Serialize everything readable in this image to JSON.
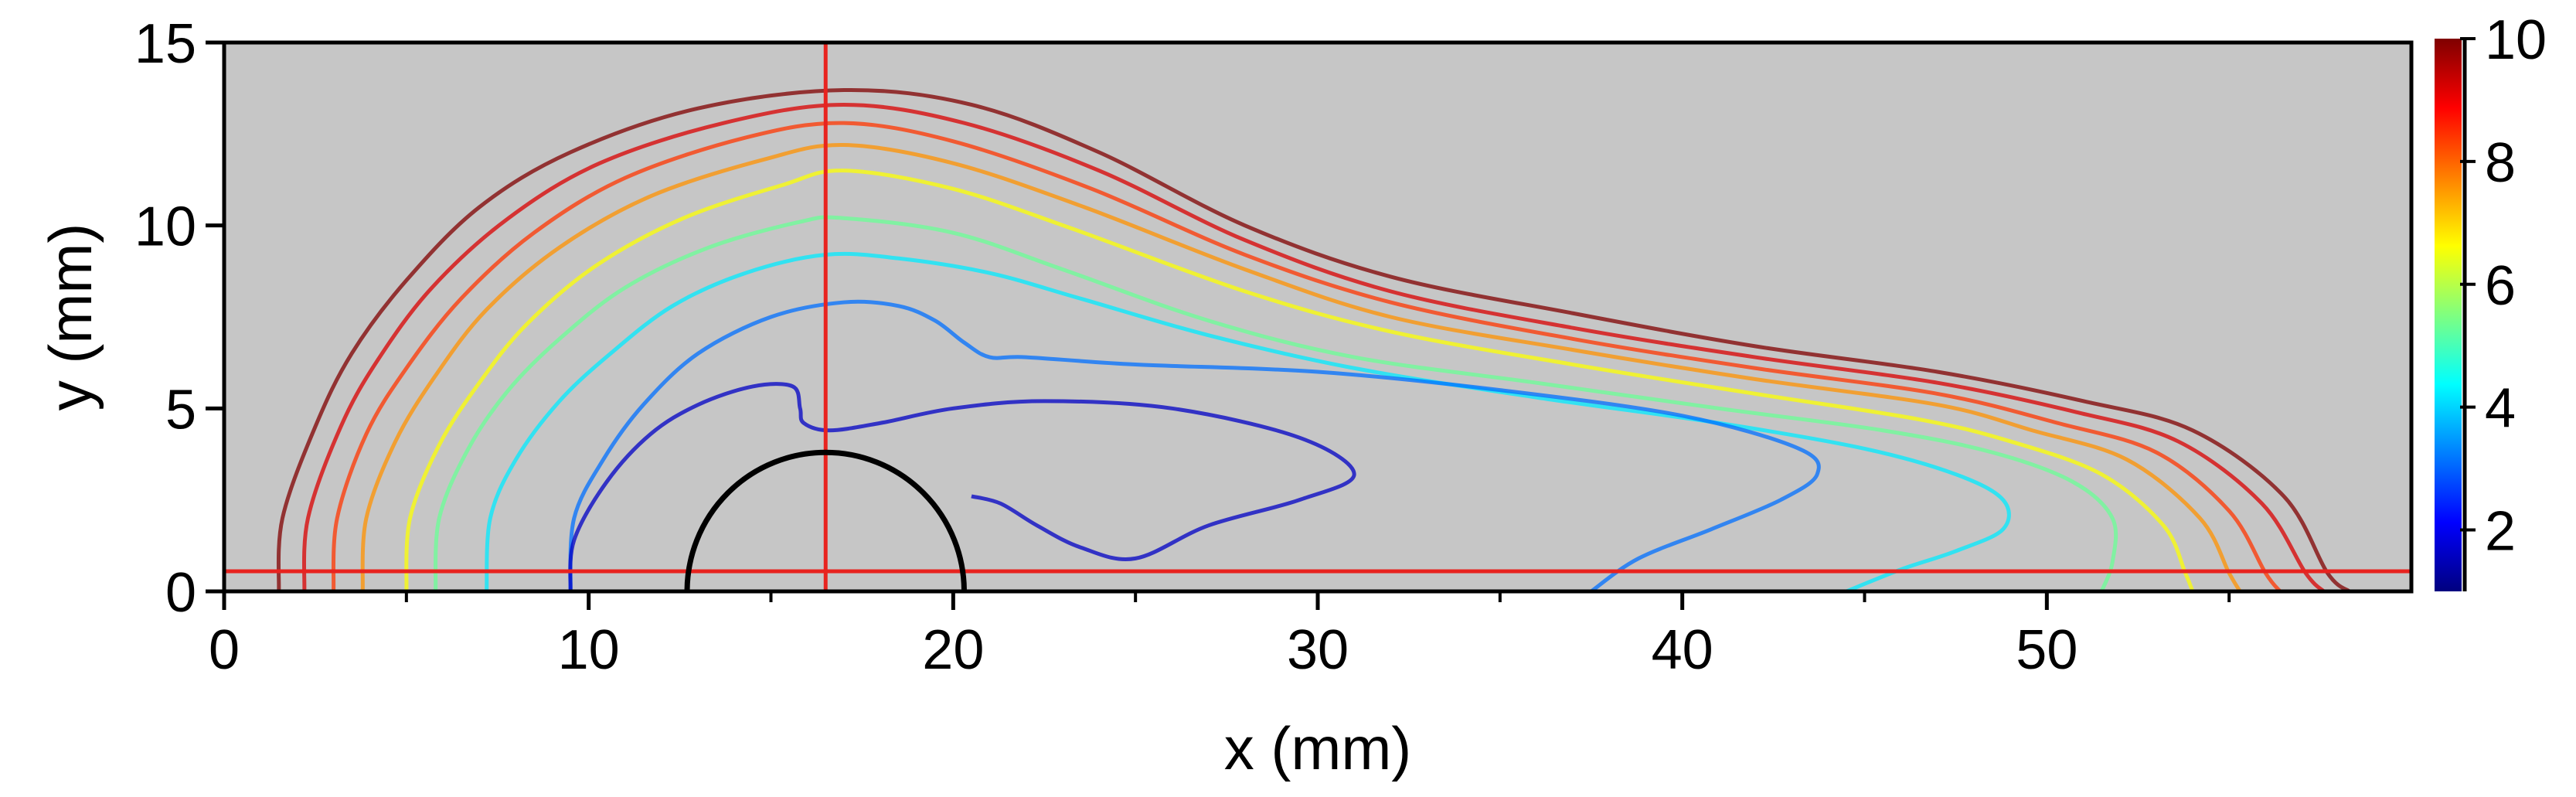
{
  "chart_data": {
    "type": "contour",
    "title": "",
    "xlabel": "x (mm)",
    "ylabel": "y (mm)",
    "xlim": [
      0,
      60
    ],
    "ylim": [
      0,
      15
    ],
    "x_ticks": [
      "0",
      "10",
      "20",
      "30",
      "40",
      "50"
    ],
    "y_ticks": [
      "0",
      "5",
      "10",
      "15"
    ],
    "background_color": "#c6c6c6",
    "colorbar": {
      "range": [
        1,
        10
      ],
      "ticks": [
        "2",
        "4",
        "6",
        "8",
        "10"
      ],
      "colormap": "jet"
    },
    "reference_lines": {
      "color": "#e8231f",
      "horizontal_y": 0.55,
      "vertical_x": 16.5
    },
    "obstacle": {
      "shape": "semicircle",
      "center_x": 16.5,
      "center_y": 0,
      "radius": 3.8
    },
    "series": [
      {
        "level": 10,
        "points": [
          [
            1.5,
            0
          ],
          [
            1.6,
            2
          ],
          [
            2.5,
            4.5
          ],
          [
            3.5,
            6.5
          ],
          [
            5,
            8.5
          ],
          [
            7,
            10.5
          ],
          [
            9.5,
            12
          ],
          [
            13,
            13.2
          ],
          [
            17,
            13.7
          ],
          [
            20.5,
            13.3
          ],
          [
            24,
            12
          ],
          [
            28,
            10
          ],
          [
            32,
            8.6
          ],
          [
            37,
            7.6
          ],
          [
            42,
            6.7
          ],
          [
            47,
            6.0
          ],
          [
            51,
            5.2
          ],
          [
            54,
            4.4
          ],
          [
            56.5,
            2.6
          ],
          [
            57.7,
            0.5
          ],
          [
            58.3,
            0
          ]
        ]
      },
      {
        "level": 9.2,
        "points": [
          [
            2.2,
            0
          ],
          [
            2.3,
            2
          ],
          [
            3.2,
            4.5
          ],
          [
            4.2,
            6.3
          ],
          [
            5.7,
            8.3
          ],
          [
            7.8,
            10.2
          ],
          [
            10.3,
            11.7
          ],
          [
            13.7,
            12.8
          ],
          [
            17,
            13.3
          ],
          [
            20.3,
            12.8
          ],
          [
            24,
            11.5
          ],
          [
            28,
            9.6
          ],
          [
            32,
            8.2
          ],
          [
            37,
            7.2
          ],
          [
            42,
            6.4
          ],
          [
            47,
            5.7
          ],
          [
            50.8,
            4.9
          ],
          [
            53.6,
            4.1
          ],
          [
            55.9,
            2.4
          ],
          [
            57.1,
            0.5
          ],
          [
            57.6,
            0
          ]
        ]
      },
      {
        "level": 8.4,
        "points": [
          [
            3.0,
            0
          ],
          [
            3.1,
            2
          ],
          [
            3.9,
            4.3
          ],
          [
            5,
            6.1
          ],
          [
            6.5,
            8
          ],
          [
            8.5,
            9.8
          ],
          [
            11,
            11.3
          ],
          [
            14.3,
            12.4
          ],
          [
            17,
            12.8
          ],
          [
            20,
            12.3
          ],
          [
            23.8,
            11
          ],
          [
            28,
            9.2
          ],
          [
            32,
            7.9
          ],
          [
            37,
            6.9
          ],
          [
            42,
            6.1
          ],
          [
            47,
            5.4
          ],
          [
            50.3,
            4.6
          ],
          [
            53,
            3.8
          ],
          [
            55,
            2.2
          ],
          [
            56,
            0.5
          ],
          [
            56.4,
            0
          ]
        ]
      },
      {
        "level": 7.6,
        "points": [
          [
            3.8,
            0
          ],
          [
            3.9,
            2
          ],
          [
            4.7,
            4.1
          ],
          [
            5.8,
            5.9
          ],
          [
            7.2,
            7.7
          ],
          [
            9.2,
            9.4
          ],
          [
            11.7,
            10.8
          ],
          [
            14.8,
            11.8
          ],
          [
            17,
            12.2
          ],
          [
            20,
            11.7
          ],
          [
            23.6,
            10.5
          ],
          [
            28,
            8.8
          ],
          [
            32,
            7.5
          ],
          [
            37,
            6.6
          ],
          [
            42,
            5.8
          ],
          [
            47,
            5.1
          ],
          [
            49.6,
            4.4
          ],
          [
            52.2,
            3.6
          ],
          [
            54.2,
            2.0
          ],
          [
            55,
            0.5
          ],
          [
            55.3,
            0
          ]
        ]
      },
      {
        "level": 6.6,
        "points": [
          [
            5.0,
            0
          ],
          [
            5.1,
            2
          ],
          [
            5.9,
            4
          ],
          [
            7,
            5.7
          ],
          [
            8.3,
            7.3
          ],
          [
            10.2,
            8.9
          ],
          [
            12.6,
            10.2
          ],
          [
            15.3,
            11.1
          ],
          [
            17,
            11.5
          ],
          [
            20,
            11
          ],
          [
            23.3,
            9.9
          ],
          [
            28,
            8.2
          ],
          [
            32,
            7.1
          ],
          [
            37,
            6.2
          ],
          [
            42,
            5.4
          ],
          [
            46.5,
            4.7
          ],
          [
            49,
            4.1
          ],
          [
            51.5,
            3.2
          ],
          [
            53.2,
            1.8
          ],
          [
            53.8,
            0.5
          ],
          [
            54,
            0
          ]
        ]
      },
      {
        "level": 5.3,
        "points": [
          [
            5.8,
            0
          ],
          [
            5.9,
            2
          ],
          [
            6.7,
            3.9
          ],
          [
            7.8,
            5.5
          ],
          [
            9.2,
            6.9
          ],
          [
            11,
            8.3
          ],
          [
            13.3,
            9.4
          ],
          [
            15.8,
            10.1
          ],
          [
            17,
            10.2
          ],
          [
            20,
            9.8
          ],
          [
            23,
            8.8
          ],
          [
            27,
            7.4
          ],
          [
            31,
            6.4
          ],
          [
            36,
            5.7
          ],
          [
            41,
            5.0
          ],
          [
            45.5,
            4.4
          ],
          [
            48.5,
            3.8
          ],
          [
            50.7,
            3.0
          ],
          [
            51.8,
            2.0
          ],
          [
            51.8,
            0.8
          ],
          [
            51.5,
            0
          ]
        ]
      },
      {
        "level": 4.2,
        "points": [
          [
            7.2,
            0
          ],
          [
            7.3,
            2
          ],
          [
            8,
            3.6
          ],
          [
            9.2,
            5.2
          ],
          [
            10.6,
            6.5
          ],
          [
            12.3,
            7.8
          ],
          [
            14.3,
            8.7
          ],
          [
            16.5,
            9.2
          ],
          [
            18.5,
            9.1
          ],
          [
            21,
            8.7
          ],
          [
            23.5,
            8.0
          ],
          [
            27,
            7.0
          ],
          [
            31,
            6.1
          ],
          [
            36,
            5.3
          ],
          [
            41,
            4.6
          ],
          [
            45,
            3.9
          ],
          [
            47.5,
            3.2
          ],
          [
            48.8,
            2.5
          ],
          [
            48.8,
            1.7
          ],
          [
            47.5,
            1.1
          ],
          [
            46,
            0.6
          ],
          [
            44.5,
            0
          ]
        ]
      },
      {
        "level": 3.1,
        "points": [
          [
            9.5,
            0
          ],
          [
            9.6,
            2
          ],
          [
            10.4,
            3.6
          ],
          [
            11.5,
            5.1
          ],
          [
            13,
            6.5
          ],
          [
            15,
            7.5
          ],
          [
            17,
            7.9
          ],
          [
            18.5,
            7.8
          ],
          [
            19.5,
            7.4
          ],
          [
            20.3,
            6.8
          ],
          [
            21,
            6.4
          ],
          [
            22,
            6.4
          ],
          [
            25,
            6.2
          ],
          [
            30,
            6.0
          ],
          [
            35,
            5.5
          ],
          [
            40,
            4.8
          ],
          [
            43.2,
            3.9
          ],
          [
            43.7,
            3.2
          ],
          [
            42.7,
            2.5
          ],
          [
            40.8,
            1.7
          ],
          [
            38.8,
            0.9
          ],
          [
            37.5,
            0
          ]
        ]
      },
      {
        "level": 1.6,
        "points": [
          [
            9.5,
            0
          ],
          [
            9.6,
            1.4
          ],
          [
            10.5,
            3
          ],
          [
            11.7,
            4.3
          ],
          [
            13,
            5.1
          ],
          [
            14.5,
            5.6
          ],
          [
            15.6,
            5.6
          ],
          [
            15.8,
            5.0
          ],
          [
            15.9,
            4.6
          ],
          [
            16.6,
            4.4
          ],
          [
            18,
            4.6
          ],
          [
            20,
            5.0
          ],
          [
            22.5,
            5.2
          ],
          [
            26,
            5.0
          ],
          [
            29.5,
            4.2
          ],
          [
            31,
            3.2
          ],
          [
            29.5,
            2.5
          ],
          [
            27,
            1.8
          ],
          [
            25,
            0.9
          ],
          [
            23.5,
            1.2
          ],
          [
            22.3,
            1.8
          ],
          [
            21.3,
            2.4
          ],
          [
            20.5,
            2.6
          ]
        ]
      }
    ]
  }
}
